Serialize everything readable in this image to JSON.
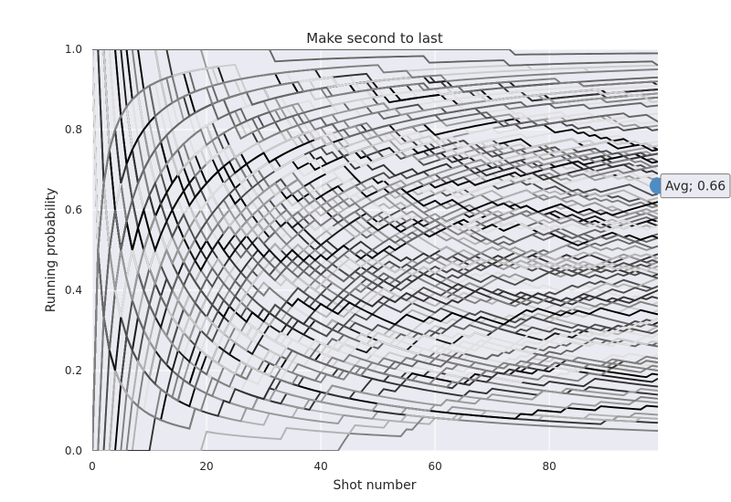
{
  "chart_data": {
    "type": "line",
    "title": "Make second to last",
    "xlabel": "Shot number",
    "ylabel": "Running probability",
    "xlim": [
      0,
      99
    ],
    "ylim": [
      0.0,
      1.0
    ],
    "xticks": [
      0,
      20,
      40,
      60,
      80
    ],
    "xtick_labels": [
      "0",
      "20",
      "40",
      "60",
      "80"
    ],
    "yticks": [
      0.0,
      0.2,
      0.4,
      0.6,
      0.8,
      1.0
    ],
    "ytick_labels": [
      "0.0",
      "0.2",
      "0.4",
      "0.6",
      "0.8",
      "1.0"
    ],
    "grid": true,
    "style": {
      "plot_background": "#EAEAF2",
      "grid_color": "#FFFFFF",
      "line_colors": [
        "#000000",
        "#1A1A1A",
        "#333333",
        "#4D4D4D",
        "#666666",
        "#808080",
        "#999999",
        "#B3B3B3",
        "#CCCCCC",
        "#E0E0E0"
      ],
      "marker_color": "#4C8DC4"
    },
    "n_series": 120,
    "average": {
      "x": 99,
      "y": 0.66,
      "label": "Avg; 0.66"
    }
  }
}
